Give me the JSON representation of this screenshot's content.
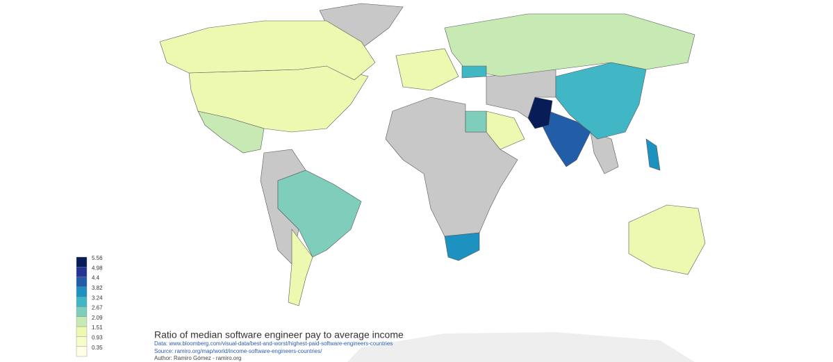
{
  "title": "Ratio of median software engineer pay to average income",
  "data_line": "Data: www.bloomberg.com/visual-data/best-and-worst/highest-paid-software-engineers-countries",
  "source_line": "Source: ramiro.org/map/world/income-software-engineers-countries/",
  "author_line": "Author: Ramiro Gómez - ramiro.org",
  "legend": {
    "breaks": [
      5.56,
      4.98,
      4.4,
      3.82,
      3.24,
      2.67,
      2.09,
      1.51,
      0.93,
      0.35
    ],
    "colors": [
      "#081d58",
      "#253494",
      "#225ea8",
      "#1d91c0",
      "#41b6c4",
      "#7fcdbb",
      "#c7e9b4",
      "#edf8b1",
      "#f7fcc8",
      "#ffffe5"
    ]
  },
  "regions": [
    {
      "value": 1.2
    },
    {
      "value": 1.0
    },
    {
      "value": 1.8
    },
    {
      "value": 2.4
    },
    {
      "value": 1.3
    },
    {
      "value": 1.8
    },
    {
      "value": 3.0
    },
    {
      "value": 4.3
    },
    {
      "value": 5.4
    },
    {
      "value": 3.4
    },
    {
      "value": 1.2
    },
    {
      "value": 1.4
    },
    {
      "value": 2.3
    },
    {
      "value": 1.0
    },
    {
      "value": 3.0
    },
    {
      "value": 3.3
    }
  ]
}
